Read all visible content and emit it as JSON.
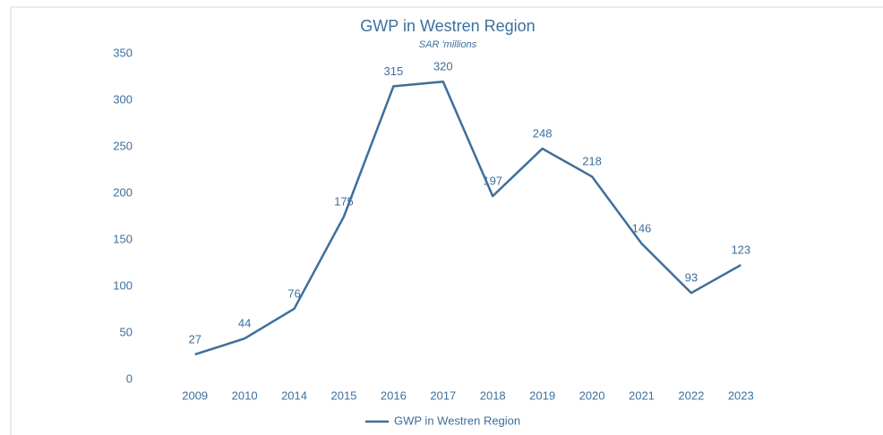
{
  "chart_data": {
    "type": "line",
    "title": "GWP in Westren Region",
    "subtitle": "SAR 'millions",
    "categories": [
      "2009",
      "2010",
      "2014",
      "2015",
      "2016",
      "2017",
      "2018",
      "2019",
      "2020",
      "2021",
      "2022",
      "2023"
    ],
    "series": [
      {
        "name": "GWP in Westren Region",
        "color": "#3d6f9c",
        "values": [
          27,
          44,
          76,
          175,
          315,
          320,
          197,
          248,
          218,
          146,
          93,
          123
        ]
      }
    ],
    "ylim": [
      0,
      350
    ],
    "yticks": [
      0,
      50,
      100,
      150,
      200,
      250,
      300,
      350
    ],
    "grid": false,
    "legend": "bottom"
  }
}
